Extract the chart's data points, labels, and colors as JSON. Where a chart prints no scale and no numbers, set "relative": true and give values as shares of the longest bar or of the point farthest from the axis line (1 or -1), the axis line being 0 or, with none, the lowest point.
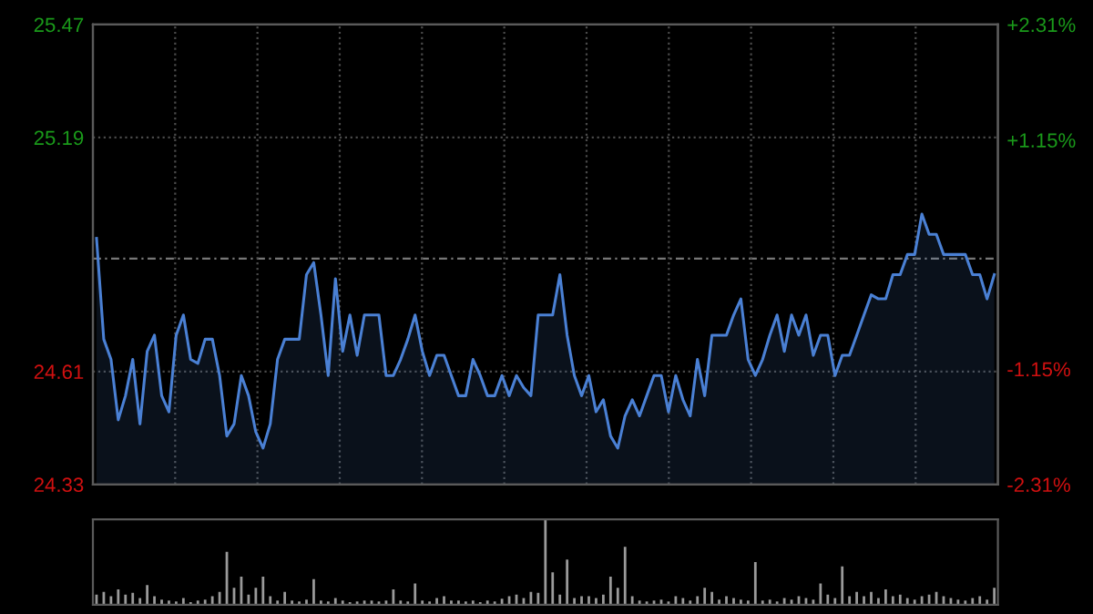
{
  "chart_data": [
    {
      "type": "area",
      "categories": [
        null,
        null,
        null,
        null,
        null,
        null,
        null,
        null,
        null,
        null,
        null,
        null,
        null,
        null,
        null,
        null,
        null,
        null,
        null,
        null,
        null,
        null,
        null,
        null,
        null,
        null,
        null,
        null,
        null,
        null,
        null,
        null,
        null,
        null,
        null,
        null,
        null,
        null,
        null,
        null,
        null,
        null,
        null,
        null,
        null,
        null,
        null,
        null,
        null,
        null,
        null,
        null,
        null,
        null,
        null,
        null,
        null,
        null,
        null,
        null,
        null,
        null,
        null,
        null,
        null,
        null,
        null,
        null,
        null,
        null,
        null,
        null,
        null,
        null,
        null,
        null,
        null,
        null,
        null,
        null,
        null,
        null,
        null,
        null,
        null,
        null,
        null,
        null,
        null,
        null,
        null,
        null,
        null,
        null,
        null,
        null,
        null,
        null,
        null,
        null,
        null,
        null,
        null,
        null,
        null,
        null,
        null,
        null,
        null,
        null,
        null,
        null,
        null,
        null,
        null,
        null,
        null,
        null,
        null,
        null,
        null,
        null,
        null,
        null,
        null
      ],
      "series": [
        {
          "color": "#4a80d4",
          "values": [
            24.94,
            24.69,
            24.64,
            24.49,
            24.55,
            24.64,
            24.48,
            24.66,
            24.7,
            24.55,
            24.51,
            24.7,
            24.75,
            24.64,
            24.63,
            24.69,
            24.69,
            24.6,
            24.45,
            24.48,
            24.6,
            24.55,
            24.46,
            24.42,
            24.48,
            24.64,
            24.69,
            24.69,
            24.69,
            24.85,
            24.88,
            24.75,
            24.6,
            24.84,
            24.66,
            24.75,
            24.65,
            24.75,
            24.75,
            24.75,
            24.6,
            24.6,
            24.64,
            24.69,
            24.75,
            24.66,
            24.6,
            24.65,
            24.65,
            24.6,
            24.55,
            24.55,
            24.64,
            24.6,
            24.55,
            24.55,
            24.6,
            24.55,
            24.6,
            24.57,
            24.55,
            24.75,
            24.75,
            24.75,
            24.85,
            24.7,
            24.6,
            24.55,
            24.6,
            24.51,
            24.54,
            24.45,
            24.42,
            24.5,
            24.54,
            24.5,
            24.55,
            24.6,
            24.6,
            24.51,
            24.6,
            24.54,
            24.5,
            24.64,
            24.55,
            24.7,
            24.7,
            24.7,
            24.75,
            24.79,
            24.64,
            24.6,
            24.64,
            24.7,
            24.75,
            24.66,
            24.75,
            24.7,
            24.75,
            24.65,
            24.7,
            24.7,
            24.6,
            24.65,
            24.65,
            24.7,
            24.75,
            24.8,
            24.79,
            24.79,
            24.85,
            24.85,
            24.9,
            24.9,
            25.0,
            24.95,
            24.95,
            24.9,
            24.9,
            24.9,
            24.9,
            24.85,
            24.85,
            24.79,
            24.85
          ]
        }
      ],
      "ylim": [
        24.33,
        25.47
      ],
      "yticks": [
        24.33,
        24.61,
        25.19,
        25.47
      ],
      "y2lim": [
        -2.31,
        2.31
      ],
      "y2ticks": [
        {
          "value": -2.31,
          "label": "-2.31%"
        },
        {
          "value": -1.15,
          "label": "-1.15%"
        },
        {
          "value": 1.15,
          "label": "+1.15%"
        },
        {
          "value": 2.31,
          "label": "+2.31%"
        }
      ],
      "ref_lines": [
        {
          "axis": "y",
          "value": 24.89,
          "label": null,
          "color": "#777777",
          "line_style": "dashed"
        }
      ],
      "grid": true,
      "legend": false
    },
    {
      "type": "bar",
      "relative": true,
      "categories": [
        null,
        null,
        null,
        null,
        null,
        null,
        null,
        null,
        null,
        null,
        null,
        null,
        null,
        null,
        null,
        null,
        null,
        null,
        null,
        null,
        null,
        null,
        null,
        null,
        null,
        null,
        null,
        null,
        null,
        null,
        null,
        null,
        null,
        null,
        null,
        null,
        null,
        null,
        null,
        null,
        null,
        null,
        null,
        null,
        null,
        null,
        null,
        null,
        null,
        null,
        null,
        null,
        null,
        null,
        null,
        null,
        null,
        null,
        null,
        null,
        null,
        null,
        null,
        null,
        null,
        null,
        null,
        null,
        null,
        null,
        null,
        null,
        null,
        null,
        null,
        null,
        null,
        null,
        null,
        null,
        null,
        null,
        null,
        null,
        null,
        null,
        null,
        null,
        null,
        null,
        null,
        null,
        null,
        null,
        null,
        null,
        null,
        null,
        null,
        null,
        null,
        null,
        null,
        null,
        null,
        null,
        null,
        null,
        null,
        null,
        null,
        null,
        null,
        null,
        null,
        null,
        null,
        null,
        null,
        null,
        null,
        null,
        null,
        null,
        null
      ],
      "color": "#9a9a9a",
      "values": [
        0.12,
        0.15,
        0.1,
        0.18,
        0.12,
        0.14,
        0.08,
        0.23,
        0.1,
        0.06,
        0.05,
        0.04,
        0.08,
        0.03,
        0.05,
        0.06,
        0.1,
        0.15,
        0.62,
        0.2,
        0.33,
        0.12,
        0.2,
        0.33,
        0.1,
        0.05,
        0.15,
        0.05,
        0.04,
        0.06,
        0.3,
        0.05,
        0.04,
        0.08,
        0.05,
        0.03,
        0.04,
        0.05,
        0.05,
        0.04,
        0.05,
        0.18,
        0.05,
        0.04,
        0.25,
        0.05,
        0.04,
        0.08,
        0.1,
        0.05,
        0.05,
        0.04,
        0.05,
        0.03,
        0.05,
        0.04,
        0.07,
        0.1,
        0.12,
        0.08,
        0.15,
        0.14,
        1.0,
        0.38,
        0.12,
        0.53,
        0.08,
        0.1,
        0.1,
        0.08,
        0.12,
        0.33,
        0.2,
        0.68,
        0.1,
        0.05,
        0.04,
        0.05,
        0.06,
        0.04,
        0.1,
        0.08,
        0.05,
        0.1,
        0.2,
        0.15,
        0.06,
        0.1,
        0.08,
        0.06,
        0.05,
        0.5,
        0.05,
        0.06,
        0.04,
        0.08,
        0.06,
        0.1,
        0.08,
        0.06,
        0.25,
        0.12,
        0.08,
        0.45,
        0.1,
        0.15,
        0.1,
        0.15,
        0.08,
        0.18,
        0.1,
        0.12,
        0.08,
        0.06,
        0.1,
        0.12,
        0.15,
        0.1,
        0.08,
        0.06,
        0.05,
        0.08,
        0.1,
        0.06,
        0.2
      ]
    }
  ]
}
